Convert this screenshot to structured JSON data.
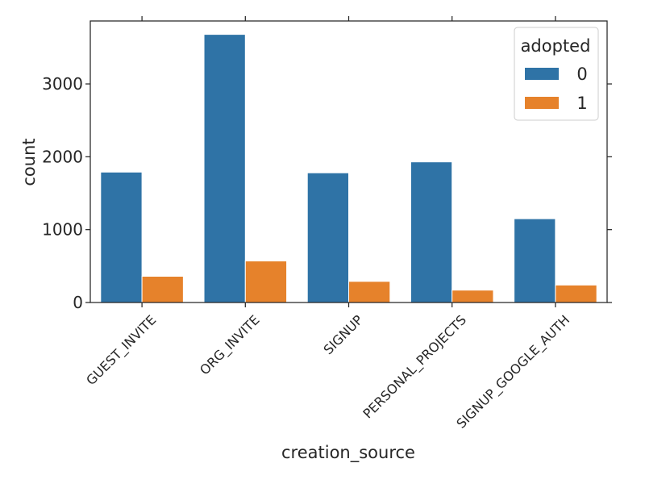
{
  "chart_data": {
    "type": "bar",
    "categories": [
      "GUEST_INVITE",
      "ORG_INVITE",
      "SIGNUP",
      "PERSONAL_PROJECTS",
      "SIGNUP_GOOGLE_AUTH"
    ],
    "series": [
      {
        "name": "0",
        "values": [
          1790,
          3680,
          1780,
          1930,
          1150
        ],
        "color": "#2f73a6"
      },
      {
        "name": "1",
        "values": [
          360,
          570,
          290,
          170,
          240
        ],
        "color": "#e6822b"
      }
    ],
    "xlabel": "creation_source",
    "ylabel": "count",
    "yticks": [
      0,
      1000,
      2000,
      3000
    ],
    "ylim": [
      0,
      3864
    ],
    "legend": {
      "title": "adopted",
      "placement": "top-right"
    },
    "grid": false
  }
}
